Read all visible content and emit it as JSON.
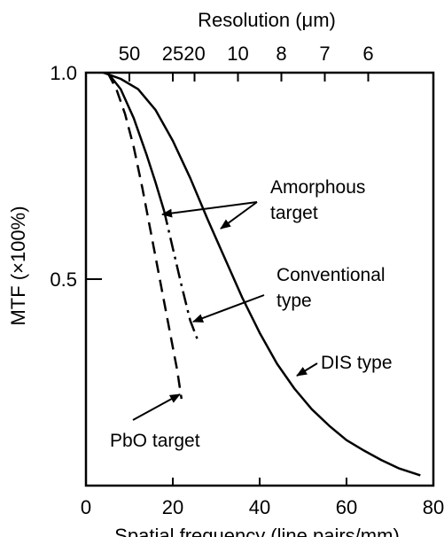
{
  "chart_data": {
    "type": "line",
    "xlabel": "Spatial frequency (line pairs/mm)",
    "ylabel": "MTF (×100%)",
    "top_axis_label": "Resolution (μm)",
    "xlim": [
      0,
      80
    ],
    "ylim": [
      0,
      1.0
    ],
    "x_ticks": [
      "0",
      "20",
      "40",
      "60",
      "80"
    ],
    "y_ticks": [
      "0.5",
      "1.0"
    ],
    "top_ticks": [
      {
        "label": "50",
        "freq": 10
      },
      {
        "label": "25",
        "freq": 20
      },
      {
        "label": "20",
        "freq": 25
      },
      {
        "label": "10",
        "freq": 35
      },
      {
        "label": "8",
        "freq": 45
      },
      {
        "label": "7",
        "freq": 55
      },
      {
        "label": "6",
        "freq": 65
      }
    ],
    "grid": false,
    "series": [
      {
        "name": "DIS type",
        "style": "solid",
        "points": [
          [
            4,
            1.0
          ],
          [
            8,
            0.985
          ],
          [
            12,
            0.96
          ],
          [
            16,
            0.91
          ],
          [
            20,
            0.835
          ],
          [
            24,
            0.745
          ],
          [
            28,
            0.645
          ],
          [
            32,
            0.55
          ],
          [
            36,
            0.455
          ],
          [
            40,
            0.37
          ],
          [
            44,
            0.295
          ],
          [
            48,
            0.235
          ],
          [
            52,
            0.185
          ],
          [
            56,
            0.145
          ],
          [
            60,
            0.11
          ],
          [
            64,
            0.085
          ],
          [
            68,
            0.062
          ],
          [
            72,
            0.042
          ],
          [
            77,
            0.025
          ]
        ]
      },
      {
        "name": "Amorphous target",
        "style": "solid",
        "points": [
          [
            5,
            1.0
          ],
          [
            8,
            0.96
          ],
          [
            11,
            0.89
          ],
          [
            14,
            0.8
          ],
          [
            16,
            0.735
          ],
          [
            18,
            0.665
          ]
        ]
      },
      {
        "name": "Conventional type",
        "style": "dash-dot",
        "points": [
          [
            18,
            0.665
          ],
          [
            20,
            0.575
          ],
          [
            22,
            0.485
          ],
          [
            24,
            0.4
          ],
          [
            26,
            0.345
          ]
        ]
      },
      {
        "name": "PbO target",
        "style": "dashed",
        "points": [
          [
            5,
            1.0
          ],
          [
            7,
            0.96
          ],
          [
            9,
            0.9
          ],
          [
            11,
            0.82
          ],
          [
            13,
            0.72
          ],
          [
            15,
            0.61
          ],
          [
            17,
            0.5
          ],
          [
            19,
            0.39
          ],
          [
            21,
            0.28
          ],
          [
            22,
            0.21
          ]
        ]
      }
    ],
    "annotations": [
      {
        "text": "Amorphous",
        "for": "Amorphous target"
      },
      {
        "text": "target",
        "for": "Amorphous target"
      },
      {
        "text": "Conventional",
        "for": "Conventional type"
      },
      {
        "text": "type",
        "for": "Conventional type"
      },
      {
        "text": "DIS type",
        "for": "DIS type"
      },
      {
        "text": "PbO target",
        "for": "PbO target"
      }
    ]
  }
}
